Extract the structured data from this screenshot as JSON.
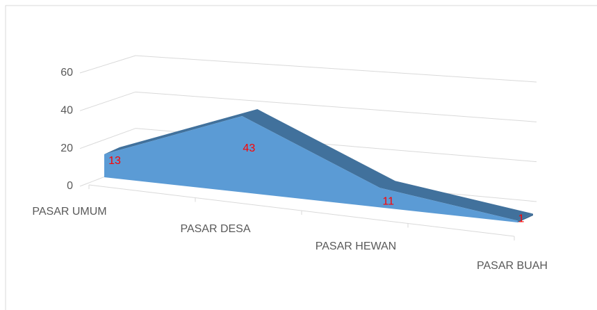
{
  "chart_data": {
    "type": "area",
    "categories": [
      "PASAR UMUM",
      "PASAR DESA",
      "PASAR HEWAN",
      "PASAR BUAH"
    ],
    "values": [
      13,
      43,
      11,
      1
    ],
    "color": "#5b9bd5",
    "label_color": "#ff0000",
    "ylim": [
      0,
      60
    ],
    "yticks": [
      0,
      20,
      40,
      60
    ],
    "grid": true
  }
}
